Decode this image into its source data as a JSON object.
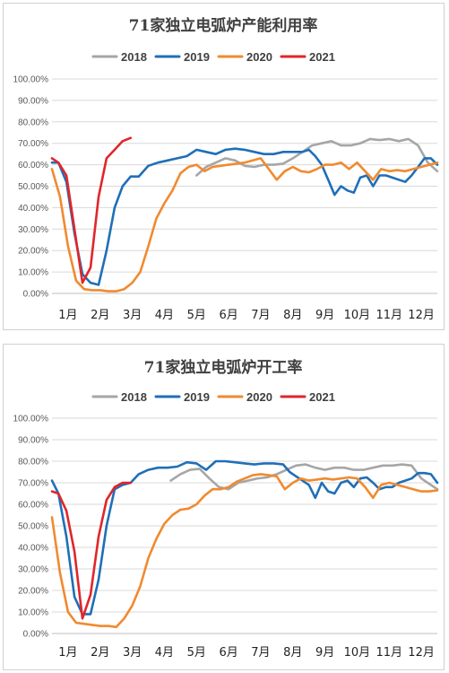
{
  "colors": {
    "2018": "#a6a6a6",
    "2019": "#1f6fb8",
    "2020": "#f08a30",
    "2021": "#e0262a"
  },
  "chart_data": [
    {
      "type": "line",
      "title": "71家独立电弧炉产能利用率",
      "ylim": [
        0,
        100
      ],
      "yticks": [
        "0.00%",
        "10.00%",
        "20.00%",
        "30.00%",
        "40.00%",
        "50.00%",
        "60.00%",
        "70.00%",
        "80.00%",
        "90.00%",
        "100.00%"
      ],
      "categories": [
        "1月",
        "2月",
        "3月",
        "4月",
        "5月",
        "6月",
        "7月",
        "8月",
        "9月",
        "10月",
        "11月",
        "12月"
      ],
      "xlim": [
        0,
        12
      ],
      "grid": true,
      "legend": "top",
      "series": [
        {
          "name": "2018",
          "color_key": "2018",
          "x": [
            4.5,
            4.8,
            5.1,
            5.4,
            5.7,
            6.0,
            6.3,
            6.6,
            6.9,
            7.2,
            7.5,
            7.8,
            8.1,
            8.4,
            8.7,
            9.0,
            9.3,
            9.6,
            9.9,
            10.2,
            10.5,
            10.8,
            11.1,
            11.4,
            11.7,
            12.0
          ],
          "y": [
            55,
            59,
            61,
            63,
            62,
            59.5,
            59,
            60,
            60,
            60.5,
            63,
            66,
            69,
            70,
            71,
            69,
            69,
            70,
            72,
            71.5,
            72,
            71,
            72,
            69,
            61,
            57
          ]
        },
        {
          "name": "2019",
          "color_key": "2019",
          "x": [
            0.0,
            0.2,
            0.45,
            0.7,
            0.95,
            1.2,
            1.45,
            1.7,
            1.95,
            2.2,
            2.45,
            2.7,
            3.0,
            3.3,
            3.6,
            3.9,
            4.2,
            4.5,
            4.8,
            5.1,
            5.4,
            5.7,
            6.0,
            6.3,
            6.6,
            6.9,
            7.2,
            7.4,
            7.6,
            7.8,
            8.0,
            8.2,
            8.4,
            8.6,
            8.8,
            9.0,
            9.2,
            9.4,
            9.6,
            9.8,
            10.0,
            10.2,
            10.4,
            10.6,
            10.8,
            11.0,
            11.2,
            11.4,
            11.6,
            11.8,
            12.0
          ],
          "y": [
            61,
            61,
            52,
            28,
            9,
            5,
            4,
            20,
            40,
            50,
            54.5,
            54.5,
            59.5,
            61,
            62,
            63,
            64,
            67,
            66,
            65,
            67,
            67.5,
            67,
            66,
            65,
            65,
            66,
            66,
            66,
            66,
            67,
            64,
            60,
            53,
            46,
            50,
            48,
            47,
            54,
            55,
            50,
            55,
            55,
            54,
            53,
            52,
            55,
            59,
            63,
            63,
            60
          ]
        },
        {
          "name": "2020",
          "color_key": "2020",
          "x": [
            0.0,
            0.25,
            0.5,
            0.75,
            1.0,
            1.25,
            1.5,
            1.75,
            2.0,
            2.25,
            2.5,
            2.75,
            3.0,
            3.25,
            3.5,
            3.75,
            4.0,
            4.25,
            4.5,
            4.75,
            5.0,
            5.25,
            5.5,
            5.75,
            6.0,
            6.25,
            6.5,
            6.75,
            7.0,
            7.25,
            7.5,
            7.75,
            8.0,
            8.25,
            8.5,
            8.75,
            9.0,
            9.25,
            9.5,
            9.75,
            10.0,
            10.25,
            10.5,
            10.75,
            11.0,
            11.25,
            11.5,
            11.75,
            12.0
          ],
          "y": [
            58,
            45,
            22,
            6,
            2,
            1.5,
            1.5,
            1,
            1,
            2,
            5,
            10,
            22,
            35,
            42,
            48,
            56,
            59,
            60,
            57,
            59,
            59.5,
            60,
            60.5,
            61,
            62,
            63,
            58,
            53,
            57,
            59,
            57,
            56.5,
            58,
            60,
            60,
            61,
            58,
            61,
            57,
            53,
            58,
            57,
            57.5,
            57,
            58,
            59,
            60,
            61
          ]
        },
        {
          "name": "2021",
          "color_key": "2021",
          "x": [
            0.0,
            0.2,
            0.45,
            0.7,
            0.95,
            1.2,
            1.45,
            1.7,
            1.95,
            2.2,
            2.45
          ],
          "y": [
            63,
            61,
            55,
            30,
            5,
            12,
            45,
            63,
            67,
            71,
            72.5
          ]
        }
      ]
    },
    {
      "type": "line",
      "title": "71家独立电弧炉开工率",
      "ylim": [
        0,
        100
      ],
      "yticks": [
        "0.00%",
        "10.00%",
        "20.00%",
        "30.00%",
        "40.00%",
        "50.00%",
        "60.00%",
        "70.00%",
        "80.00%",
        "90.00%",
        "100.00%"
      ],
      "categories": [
        "1月",
        "2月",
        "3月",
        "4月",
        "5月",
        "6月",
        "7月",
        "8月",
        "9月",
        "10月",
        "11月",
        "12月"
      ],
      "xlim": [
        0,
        12
      ],
      "grid": true,
      "legend": "top",
      "series": [
        {
          "name": "2018",
          "color_key": "2018",
          "x": [
            3.7,
            4.0,
            4.3,
            4.6,
            4.9,
            5.2,
            5.5,
            5.8,
            6.1,
            6.4,
            6.7,
            7.0,
            7.3,
            7.6,
            7.9,
            8.2,
            8.5,
            8.8,
            9.1,
            9.4,
            9.7,
            10.0,
            10.3,
            10.6,
            10.9,
            11.2,
            11.5,
            11.8,
            12.0
          ],
          "y": [
            71,
            74,
            76,
            76.5,
            72,
            68,
            67,
            70,
            71,
            72,
            72.5,
            74,
            76,
            78,
            78.5,
            77,
            76,
            77,
            77,
            76,
            76,
            77,
            78,
            78,
            78.5,
            78,
            72,
            69,
            67
          ]
        },
        {
          "name": "2019",
          "color_key": "2019",
          "x": [
            0.0,
            0.2,
            0.45,
            0.7,
            0.95,
            1.2,
            1.45,
            1.7,
            1.95,
            2.2,
            2.45,
            2.7,
            3.0,
            3.3,
            3.6,
            3.9,
            4.2,
            4.5,
            4.8,
            5.1,
            5.4,
            5.7,
            6.0,
            6.3,
            6.6,
            6.9,
            7.2,
            7.4,
            7.6,
            7.8,
            8.0,
            8.2,
            8.4,
            8.6,
            8.8,
            9.0,
            9.2,
            9.4,
            9.6,
            9.8,
            10.0,
            10.2,
            10.4,
            10.6,
            10.8,
            11.0,
            11.2,
            11.4,
            11.6,
            11.8,
            12.0
          ],
          "y": [
            71,
            65,
            45,
            17,
            9,
            9,
            25,
            50,
            67,
            69,
            70,
            74,
            76,
            77,
            77,
            77.5,
            79.5,
            79,
            76,
            80,
            80,
            79.5,
            79,
            78.5,
            79,
            79,
            78.5,
            75,
            73,
            71,
            69,
            63,
            70,
            66,
            65,
            70,
            71,
            68,
            72,
            72.5,
            70,
            67,
            68,
            68,
            70,
            71,
            72,
            74.5,
            74.5,
            74,
            70
          ]
        },
        {
          "name": "2020",
          "color_key": "2020",
          "x": [
            0.0,
            0.25,
            0.5,
            0.75,
            1.0,
            1.25,
            1.5,
            1.75,
            2.0,
            2.25,
            2.5,
            2.75,
            3.0,
            3.25,
            3.5,
            3.75,
            4.0,
            4.25,
            4.5,
            4.75,
            5.0,
            5.25,
            5.5,
            5.75,
            6.0,
            6.25,
            6.5,
            6.75,
            7.0,
            7.25,
            7.5,
            7.75,
            8.0,
            8.25,
            8.5,
            8.75,
            9.0,
            9.25,
            9.5,
            9.75,
            10.0,
            10.25,
            10.5,
            10.75,
            11.0,
            11.25,
            11.5,
            11.75,
            12.0
          ],
          "y": [
            54,
            28,
            10,
            5,
            4.5,
            4,
            3.5,
            3.5,
            3,
            7,
            13,
            22,
            35,
            44,
            51,
            55,
            57.5,
            58,
            60,
            64,
            67,
            67,
            68,
            70.5,
            72,
            73.5,
            74,
            73.5,
            73,
            67,
            70,
            72,
            71,
            71.5,
            72,
            71.5,
            72,
            72.5,
            72,
            68,
            63,
            69,
            70,
            69,
            68,
            67,
            66,
            66,
            66.5
          ]
        },
        {
          "name": "2021",
          "color_key": "2021",
          "x": [
            0.0,
            0.2,
            0.45,
            0.7,
            0.95,
            1.2,
            1.45,
            1.7,
            1.95,
            2.2,
            2.45
          ],
          "y": [
            66,
            65,
            57,
            38,
            7,
            18,
            45,
            62,
            68,
            70,
            70
          ]
        }
      ]
    }
  ]
}
